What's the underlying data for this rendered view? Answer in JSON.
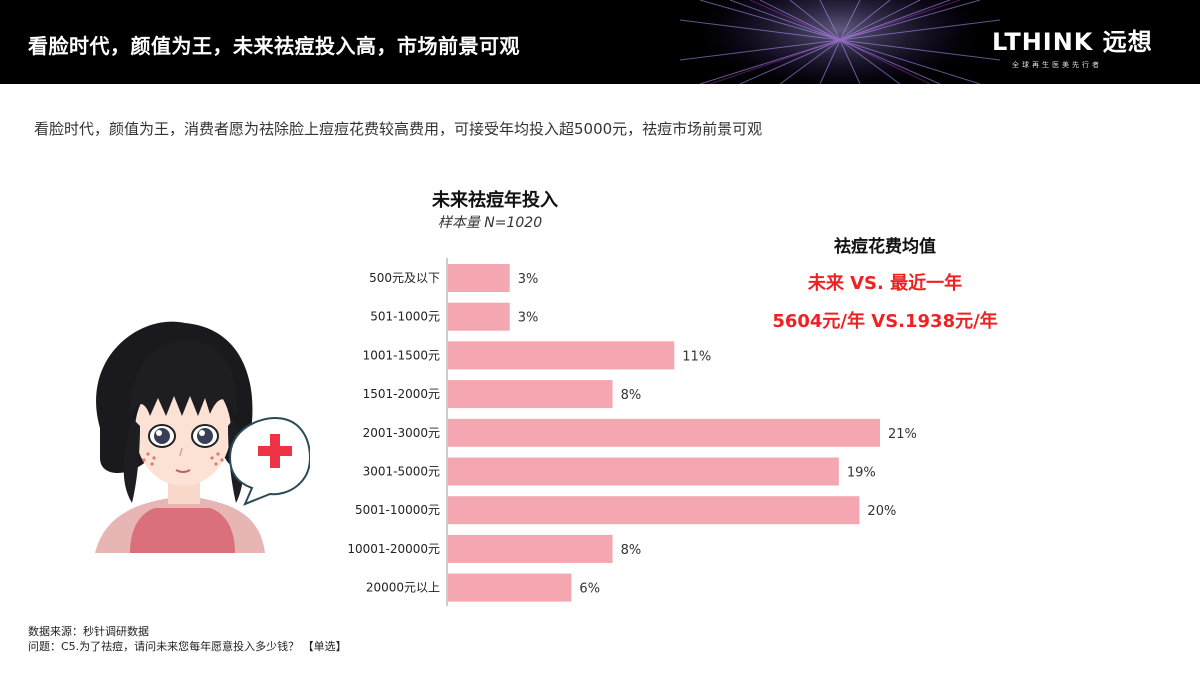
{
  "header": {
    "title": "看脸时代，颜值为王，未来祛痘投入高，市场前景可观",
    "logo_text": "LTHINK 远想",
    "logo_tagline": "全球再生医美先行者"
  },
  "subtitle": "看脸时代，颜值为王，消费者愿为祛除脸上痘痘花费较高费用，可接受年均投入超5000元，祛痘市场前景可观",
  "chart_data": {
    "type": "bar",
    "orientation": "horizontal",
    "title": "未来祛痘年投入",
    "subtitle": "样本量 N=1020",
    "categories": [
      "500元及以下",
      "501-1000元",
      "1001-1500元",
      "1501-2000元",
      "2001-3000元",
      "3001-5000元",
      "5001-10000元",
      "10001-20000元",
      "20000元以上"
    ],
    "values": [
      3,
      3,
      11,
      8,
      21,
      19,
      20,
      8,
      6
    ],
    "value_labels": [
      "3%",
      "3%",
      "11%",
      "8%",
      "21%",
      "19%",
      "20%",
      "8%",
      "6%"
    ],
    "unit": "%",
    "xlim": [
      0,
      21
    ],
    "bar_color": "#f4a7b0",
    "grid": false,
    "legend": "none"
  },
  "average": {
    "title": "祛痘花费均值",
    "line1": "未来 VS. 最近一年",
    "line2": "5604元/年 VS.1938元/年",
    "color": "#ee2222"
  },
  "footer": {
    "source": "数据来源：秒针调研数据",
    "question": "问题：C5.为了祛痘，请问未来您每年愿意投入多少钱？ 【单选】"
  },
  "illustration": {
    "icon": "medical-cross-icon",
    "cross_color": "#ee3344"
  }
}
